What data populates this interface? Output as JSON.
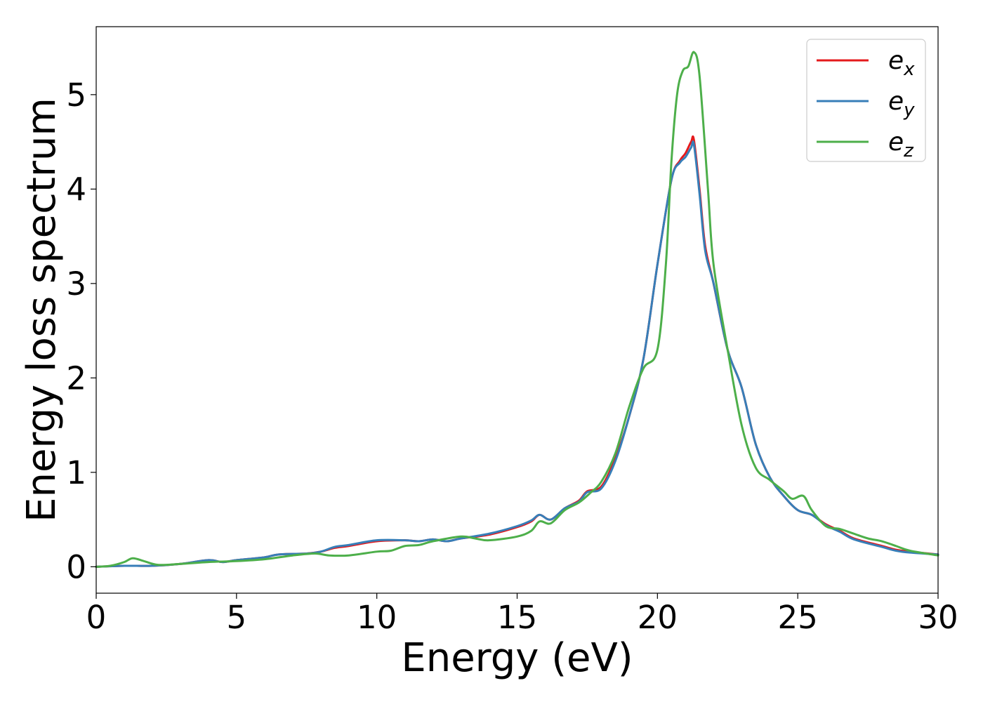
{
  "chart_data": {
    "type": "line",
    "title": "",
    "xlabel": "Energy (eV)",
    "ylabel": "Energy loss spectrum",
    "xlim": [
      0,
      30
    ],
    "ylim": [
      -0.28,
      5.72
    ],
    "xticks": [
      "0",
      "5",
      "10",
      "15",
      "20",
      "25",
      "30"
    ],
    "yticks": [
      "0",
      "1",
      "2",
      "3",
      "4",
      "5"
    ],
    "grid": false,
    "legend_position": "top-right",
    "series": [
      {
        "name": "e_x",
        "label_base": "e",
        "label_sub": "x",
        "color": "#e41a1c",
        "x": [
          0,
          1,
          2,
          3,
          4,
          4.5,
          5,
          6,
          6.5,
          7.5,
          8,
          8.5,
          9,
          10,
          11,
          11.5,
          12,
          12.5,
          13,
          14,
          15,
          15.5,
          15.8,
          16.2,
          16.7,
          17.2,
          17.5,
          18,
          18.5,
          19,
          19.5,
          20,
          20.5,
          20.8,
          21,
          21.2,
          21.3,
          21.5,
          21.7,
          22,
          22.5,
          23,
          23.5,
          24,
          24.5,
          25,
          25.5,
          26,
          26.5,
          27,
          28,
          28.5,
          29,
          30
        ],
        "y": [
          0,
          0.01,
          0.01,
          0.03,
          0.07,
          0.05,
          0.07,
          0.1,
          0.13,
          0.14,
          0.16,
          0.2,
          0.22,
          0.27,
          0.28,
          0.27,
          0.29,
          0.27,
          0.3,
          0.34,
          0.42,
          0.48,
          0.55,
          0.5,
          0.62,
          0.7,
          0.8,
          0.85,
          1.15,
          1.6,
          2.2,
          3.2,
          4.1,
          4.3,
          4.38,
          4.5,
          4.52,
          4.0,
          3.4,
          3.0,
          2.3,
          1.9,
          1.3,
          0.95,
          0.75,
          0.6,
          0.55,
          0.45,
          0.38,
          0.3,
          0.22,
          0.18,
          0.16,
          0.13
        ]
      },
      {
        "name": "e_y",
        "label_base": "e",
        "label_sub": "y",
        "color": "#377eb8",
        "x": [
          0,
          1,
          2,
          3,
          4,
          4.5,
          5,
          6,
          6.5,
          7.5,
          8,
          8.5,
          9,
          10,
          11,
          11.5,
          12,
          12.5,
          13,
          14,
          15,
          15.5,
          15.8,
          16.2,
          16.7,
          17.2,
          17.5,
          18,
          18.5,
          19,
          19.5,
          20,
          20.5,
          20.8,
          21,
          21.2,
          21.3,
          21.5,
          21.7,
          22,
          22.5,
          23,
          23.5,
          24,
          24.5,
          25,
          25.5,
          26,
          26.5,
          27,
          28,
          28.5,
          29,
          30
        ],
        "y": [
          0,
          0.01,
          0.01,
          0.03,
          0.07,
          0.05,
          0.07,
          0.1,
          0.13,
          0.14,
          0.16,
          0.21,
          0.23,
          0.28,
          0.28,
          0.27,
          0.29,
          0.27,
          0.3,
          0.35,
          0.43,
          0.49,
          0.55,
          0.5,
          0.62,
          0.69,
          0.79,
          0.83,
          1.12,
          1.6,
          2.2,
          3.2,
          4.1,
          4.28,
          4.34,
          4.44,
          4.47,
          3.95,
          3.35,
          3.0,
          2.3,
          1.9,
          1.3,
          0.95,
          0.75,
          0.6,
          0.55,
          0.44,
          0.37,
          0.29,
          0.21,
          0.17,
          0.15,
          0.13
        ]
      },
      {
        "name": "e_z",
        "label_base": "e",
        "label_sub": "z",
        "color": "#4daf4a",
        "x": [
          0,
          0.5,
          1,
          1.3,
          1.7,
          2.2,
          3,
          4,
          5,
          6,
          7,
          7.8,
          8.3,
          9,
          10,
          10.5,
          11,
          11.5,
          12,
          13,
          13.5,
          14,
          15,
          15.5,
          15.8,
          16.2,
          16.7,
          17.2,
          17.6,
          18,
          18.5,
          19,
          19.5,
          20,
          20.3,
          20.5,
          20.7,
          20.9,
          21.1,
          21.3,
          21.5,
          21.8,
          22,
          22.5,
          23,
          23.5,
          24,
          24.5,
          24.8,
          25.2,
          25.5,
          26,
          26.5,
          27,
          27.5,
          28,
          28.5,
          29,
          30
        ],
        "y": [
          0,
          0.01,
          0.05,
          0.09,
          0.06,
          0.02,
          0.03,
          0.05,
          0.06,
          0.08,
          0.12,
          0.14,
          0.12,
          0.12,
          0.16,
          0.17,
          0.22,
          0.23,
          0.27,
          0.32,
          0.3,
          0.28,
          0.32,
          0.38,
          0.48,
          0.46,
          0.6,
          0.68,
          0.78,
          0.9,
          1.2,
          1.7,
          2.1,
          2.3,
          3.2,
          4.3,
          5.0,
          5.25,
          5.3,
          5.45,
          5.2,
          4.0,
          3.2,
          2.3,
          1.5,
          1.05,
          0.92,
          0.8,
          0.72,
          0.75,
          0.6,
          0.43,
          0.4,
          0.35,
          0.3,
          0.27,
          0.22,
          0.17,
          0.12
        ]
      }
    ]
  }
}
